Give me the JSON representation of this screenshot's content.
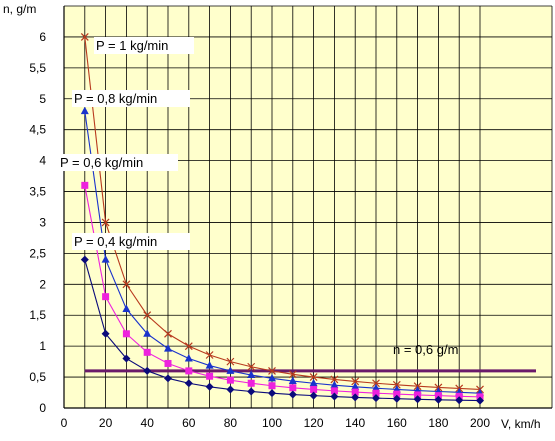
{
  "chart_data": {
    "type": "line",
    "xlabel": "V, km/h",
    "ylabel": "n, g/m",
    "xlim": [
      0,
      200
    ],
    "ylim": [
      0,
      6.5
    ],
    "x_ticks": [
      "0",
      "20",
      "40",
      "60",
      "80",
      "100",
      "120",
      "140",
      "160",
      "180",
      "200"
    ],
    "y_ticks": [
      "0",
      "0,5",
      "1",
      "1,5",
      "2",
      "2,5",
      "3",
      "3,5",
      "4",
      "4,5",
      "5",
      "5,5",
      "6"
    ],
    "grid": true,
    "x": [
      10,
      20,
      30,
      40,
      50,
      60,
      70,
      80,
      90,
      100,
      110,
      120,
      130,
      140,
      150,
      160,
      170,
      180,
      190,
      200
    ],
    "series": [
      {
        "name": "P = 1 kg/min",
        "color": "#b83a1e",
        "marker": "x",
        "values": [
          6.0,
          3.0,
          2.0,
          1.5,
          1.2,
          1.0,
          0.857,
          0.75,
          0.667,
          0.6,
          0.545,
          0.5,
          0.462,
          0.429,
          0.4,
          0.375,
          0.353,
          0.333,
          0.316,
          0.3
        ]
      },
      {
        "name": "P = 0,8 kg/min",
        "color": "#1a33cc",
        "marker": "triangle",
        "values": [
          4.8,
          2.4,
          1.6,
          1.2,
          0.96,
          0.8,
          0.686,
          0.6,
          0.533,
          0.48,
          0.436,
          0.4,
          0.369,
          0.343,
          0.32,
          0.3,
          0.282,
          0.267,
          0.253,
          0.24
        ]
      },
      {
        "name": "P = 0,6 kg/min",
        "color": "#ee22dd",
        "marker": "square",
        "values": [
          3.6,
          1.8,
          1.2,
          0.9,
          0.72,
          0.6,
          0.514,
          0.45,
          0.4,
          0.36,
          0.327,
          0.3,
          0.277,
          0.257,
          0.24,
          0.225,
          0.212,
          0.2,
          0.189,
          0.18
        ]
      },
      {
        "name": "P = 0,4 kg/min",
        "color": "#0a0a7a",
        "marker": "diamond",
        "values": [
          2.4,
          1.2,
          0.8,
          0.6,
          0.48,
          0.4,
          0.343,
          0.3,
          0.267,
          0.24,
          0.218,
          0.2,
          0.185,
          0.171,
          0.16,
          0.15,
          0.141,
          0.133,
          0.126,
          0.12
        ]
      }
    ],
    "hline": {
      "label": "n = 0,6 g/m",
      "value": 0.6,
      "x_range": [
        10,
        200
      ],
      "color": "#6a1a6a"
    }
  }
}
